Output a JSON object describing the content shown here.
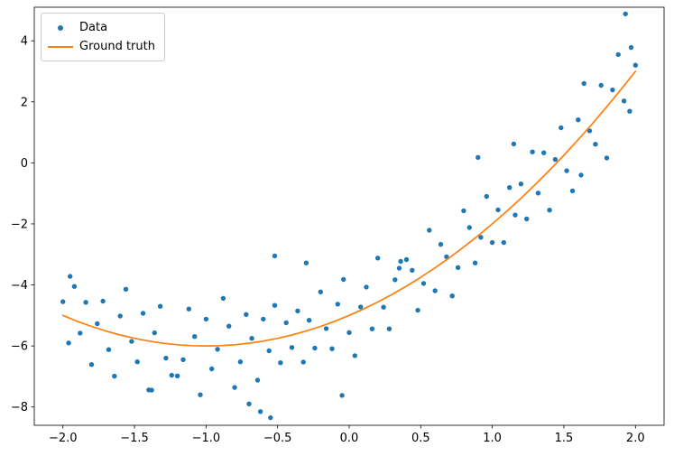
{
  "figure": {
    "background": "#ffffff"
  },
  "chart_data": {
    "type": "scatter",
    "title": "",
    "xlabel": "",
    "ylabel": "",
    "xlim": [
      -2.2,
      2.2
    ],
    "ylim": [
      -8.6,
      5.1
    ],
    "grid": false,
    "x_ticks": [
      -2.0,
      -1.5,
      -1.0,
      -0.5,
      0.0,
      0.5,
      1.0,
      1.5,
      2.0
    ],
    "x_tick_labels": [
      "−2.0",
      "−1.5",
      "−1.0",
      "−0.5",
      "0.0",
      "0.5",
      "1.0",
      "1.5",
      "2.0"
    ],
    "y_ticks": [
      -8,
      -6,
      -4,
      -2,
      0,
      2,
      4
    ],
    "y_tick_labels": [
      "−8",
      "−6",
      "−4",
      "−2",
      "0",
      "2",
      "4"
    ],
    "legend": {
      "position": "upper left",
      "border_color": "#cccccc",
      "labels": [
        "Data",
        "Ground truth"
      ]
    },
    "series": [
      {
        "name": "Data",
        "type": "scatter",
        "color": "#1f77b4",
        "marker": "circle",
        "points": [
          [
            -2.0,
            -4.55
          ],
          [
            -1.96,
            -5.9
          ],
          [
            -1.92,
            -4.05
          ],
          [
            -1.88,
            -5.58
          ],
          [
            -1.84,
            -4.57
          ],
          [
            -1.8,
            -6.61
          ],
          [
            -1.76,
            -5.27
          ],
          [
            -1.72,
            -4.53
          ],
          [
            -1.68,
            -6.12
          ],
          [
            -1.64,
            -6.99
          ],
          [
            -1.6,
            -5.02
          ],
          [
            -1.56,
            -4.14
          ],
          [
            -1.52,
            -5.85
          ],
          [
            -1.48,
            -6.52
          ],
          [
            -1.44,
            -4.93
          ],
          [
            -1.4,
            -7.44
          ],
          [
            -1.36,
            -5.57
          ],
          [
            -1.32,
            -4.7
          ],
          [
            -1.28,
            -6.4
          ],
          [
            -1.24,
            -6.96
          ],
          [
            -1.2,
            -6.98
          ],
          [
            -1.16,
            -6.45
          ],
          [
            -1.12,
            -4.79
          ],
          [
            -1.08,
            -5.69
          ],
          [
            -1.04,
            -7.6
          ],
          [
            -1.0,
            -5.12
          ],
          [
            -0.96,
            -6.75
          ],
          [
            -0.92,
            -6.11
          ],
          [
            -0.88,
            -4.44
          ],
          [
            -0.84,
            -5.35
          ],
          [
            -0.8,
            -7.36
          ],
          [
            -0.76,
            -6.52
          ],
          [
            -0.72,
            -4.97
          ],
          [
            -0.68,
            -5.75
          ],
          [
            -0.64,
            -7.12
          ],
          [
            -0.6,
            -5.12
          ],
          [
            -0.56,
            -6.16
          ],
          [
            -0.52,
            -4.67
          ],
          [
            -0.48,
            -6.55
          ],
          [
            -0.44,
            -5.24
          ],
          [
            -0.4,
            -6.05
          ],
          [
            -0.36,
            -4.85
          ],
          [
            -0.32,
            -6.53
          ],
          [
            -0.28,
            -5.16
          ],
          [
            -0.24,
            -6.07
          ],
          [
            -0.2,
            -4.23
          ],
          [
            -0.16,
            -5.43
          ],
          [
            -0.12,
            -6.09
          ],
          [
            -0.08,
            -4.63
          ],
          [
            -0.04,
            -3.82
          ],
          [
            0.0,
            -5.56
          ],
          [
            0.04,
            -6.32
          ],
          [
            0.08,
            -4.72
          ],
          [
            0.12,
            -4.07
          ],
          [
            0.16,
            -5.44
          ],
          [
            0.2,
            -3.12
          ],
          [
            0.24,
            -4.73
          ],
          [
            0.28,
            -5.44
          ],
          [
            0.32,
            -3.83
          ],
          [
            0.36,
            -3.23
          ],
          [
            0.4,
            -3.17
          ],
          [
            0.44,
            -3.52
          ],
          [
            0.48,
            -4.83
          ],
          [
            0.52,
            -3.95
          ],
          [
            0.56,
            -2.21
          ],
          [
            0.6,
            -4.19
          ],
          [
            0.64,
            -2.67
          ],
          [
            0.68,
            -3.08
          ],
          [
            0.72,
            -4.36
          ],
          [
            0.76,
            -3.43
          ],
          [
            0.8,
            -1.57
          ],
          [
            0.84,
            -2.12
          ],
          [
            0.88,
            -3.28
          ],
          [
            0.92,
            -2.44
          ],
          [
            0.96,
            -1.1
          ],
          [
            1.0,
            -2.61
          ],
          [
            1.04,
            -1.54
          ],
          [
            1.08,
            -2.61
          ],
          [
            1.12,
            -0.81
          ],
          [
            1.16,
            -1.71
          ],
          [
            1.2,
            -0.69
          ],
          [
            1.24,
            -1.84
          ],
          [
            1.28,
            0.36
          ],
          [
            1.32,
            -0.99
          ],
          [
            1.36,
            0.33
          ],
          [
            1.4,
            -1.55
          ],
          [
            1.44,
            0.11
          ],
          [
            1.48,
            1.15
          ],
          [
            1.52,
            -0.26
          ],
          [
            1.56,
            -0.92
          ],
          [
            1.6,
            1.41
          ],
          [
            1.64,
            2.6
          ],
          [
            1.68,
            1.05
          ],
          [
            1.72,
            0.61
          ],
          [
            1.76,
            2.54
          ],
          [
            1.8,
            0.16
          ],
          [
            1.84,
            2.39
          ],
          [
            1.88,
            3.55
          ],
          [
            1.92,
            2.03
          ],
          [
            1.96,
            1.69
          ],
          [
            2.0,
            3.2
          ],
          [
            1.93,
            4.88
          ],
          [
            1.97,
            3.78
          ],
          [
            -0.55,
            -8.35
          ],
          [
            -0.62,
            -8.15
          ],
          [
            -0.7,
            -7.9
          ],
          [
            -0.05,
            -7.62
          ],
          [
            0.9,
            0.18
          ],
          [
            1.15,
            0.62
          ],
          [
            -1.38,
            -7.45
          ],
          [
            -0.3,
            -3.28
          ],
          [
            -0.52,
            -3.05
          ],
          [
            1.62,
            -0.4
          ],
          [
            0.35,
            -3.45
          ],
          [
            -1.95,
            -3.72
          ]
        ]
      },
      {
        "name": "Ground truth",
        "type": "line",
        "color": "#ff7f0e",
        "fn": "y = x^2 + 2x - 5",
        "x": [
          -2.0,
          -1.9,
          -1.8,
          -1.7,
          -1.6,
          -1.5,
          -1.4,
          -1.3,
          -1.2,
          -1.1,
          -1.0,
          -0.9,
          -0.8,
          -0.7,
          -0.6,
          -0.5,
          -0.4,
          -0.3,
          -0.2,
          -0.1,
          0.0,
          0.1,
          0.2,
          0.3,
          0.4,
          0.5,
          0.6,
          0.7,
          0.8,
          0.9,
          1.0,
          1.1,
          1.2,
          1.3,
          1.4,
          1.5,
          1.6,
          1.7,
          1.8,
          1.9,
          2.0
        ],
        "y": [
          -5.0,
          -5.19,
          -5.36,
          -5.51,
          -5.64,
          -5.75,
          -5.84,
          -5.91,
          -5.96,
          -5.99,
          -6.0,
          -5.99,
          -5.96,
          -5.91,
          -5.84,
          -5.75,
          -5.64,
          -5.51,
          -5.36,
          -5.19,
          -5.0,
          -4.79,
          -4.56,
          -4.31,
          -4.04,
          -3.75,
          -3.44,
          -3.11,
          -2.76,
          -2.39,
          -2.0,
          -1.59,
          -1.16,
          -0.71,
          -0.24,
          0.25,
          0.76,
          1.29,
          1.84,
          2.41,
          3.0
        ]
      }
    ]
  }
}
